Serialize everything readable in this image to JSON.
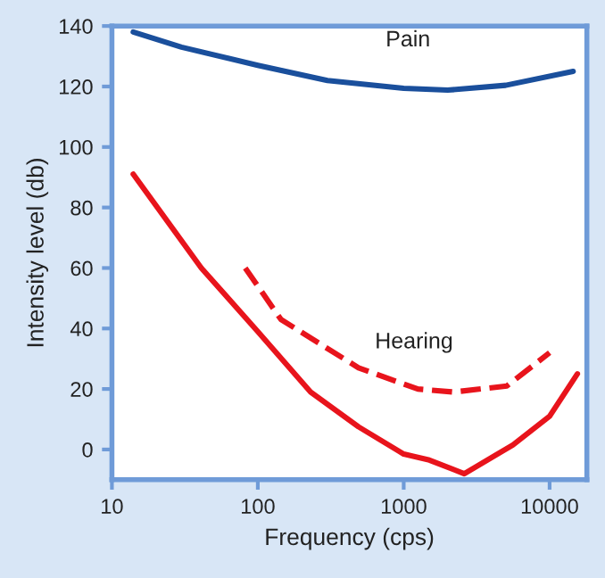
{
  "chart_data": {
    "type": "line",
    "xlabel": "Frequency (cps)",
    "ylabel": "Intensity level (db)",
    "log": "x",
    "grid": false,
    "line_style": "solid",
    "marker": "none",
    "xlim": [
      10,
      18000
    ],
    "ylim": [
      -10,
      140
    ],
    "xticks": [
      10,
      100,
      1000,
      10000
    ],
    "yticks": [
      0,
      20,
      40,
      60,
      80,
      100,
      120,
      140
    ],
    "series": [
      {
        "name": "Pain",
        "color": "#1a4f9c",
        "x": [
          14,
          30,
          100,
          300,
          1000,
          2000,
          5000,
          14500
        ],
        "values": [
          138,
          133,
          127,
          122,
          119.4,
          118.8,
          120.4,
          125
        ]
      },
      {
        "color": "#e8141c",
        "x": [
          14,
          41,
          100,
          230,
          490,
          1000,
          1500,
          2600,
          5600,
          10000,
          15500
        ],
        "values": [
          91,
          60,
          39,
          19,
          7.5,
          -1.5,
          -3.5,
          -8,
          1.5,
          11,
          25
        ]
      },
      {
        "name": "Hearing",
        "color": "#e8141c",
        "line_style": "dashed",
        "x": [
          82,
          144,
          490,
          1250,
          2200,
          5100,
          10000
        ],
        "values": [
          60,
          43,
          27,
          20,
          19,
          21,
          32
        ]
      }
    ]
  }
}
